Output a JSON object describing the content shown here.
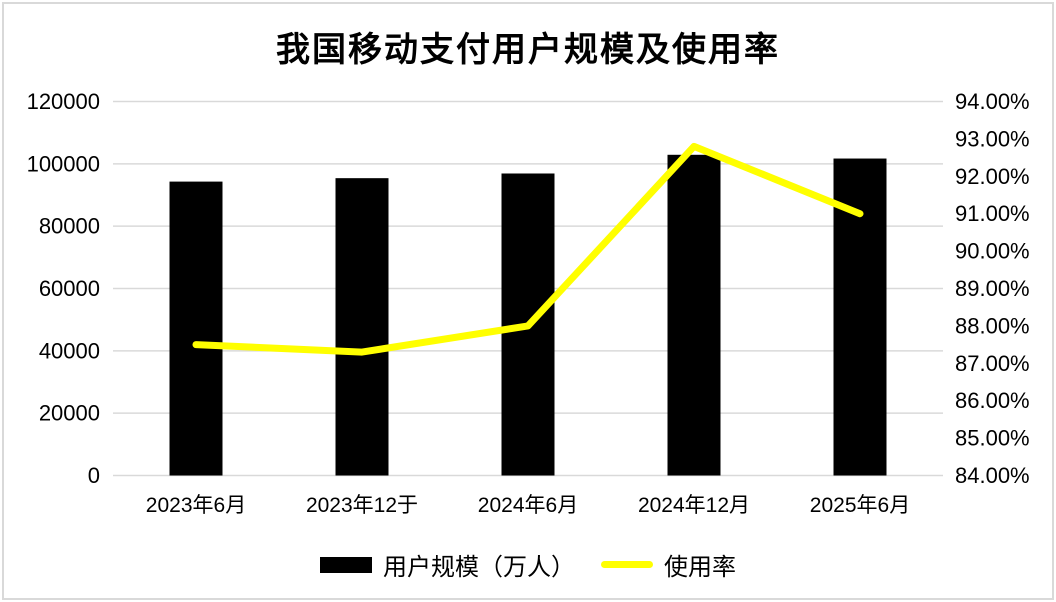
{
  "chart_data": {
    "type": "bar",
    "combo": "bar+line",
    "title": "我国移动支付用户规模及使用率",
    "categories": [
      "2023年6月",
      "2023年12于",
      "2024年6月",
      "2024年12月",
      "2025年6月"
    ],
    "series": [
      {
        "name": "用户规模（万人）",
        "type": "bar",
        "axis": "left",
        "color": "#000000",
        "values": [
          94300,
          95400,
          96900,
          102900,
          101700
        ]
      },
      {
        "name": "使用率",
        "type": "line",
        "axis": "right",
        "color": "#FFFF00",
        "unit": "%",
        "values": [
          87.5,
          87.3,
          88.0,
          92.8,
          91.0
        ]
      }
    ],
    "left_axis": {
      "min": 0,
      "max": 120000,
      "step": 20000,
      "tick_labels": [
        "0",
        "20000",
        "40000",
        "60000",
        "80000",
        "100000",
        "120000"
      ]
    },
    "right_axis": {
      "min": 84,
      "max": 94,
      "step": 1,
      "tick_labels": [
        "84.00%",
        "85.00%",
        "86.00%",
        "87.00%",
        "88.00%",
        "89.00%",
        "90.00%",
        "91.00%",
        "92.00%",
        "93.00%",
        "94.00%"
      ]
    },
    "grid": true,
    "legend_position": "bottom",
    "colors": {
      "grid": "#d9d9d9",
      "text": "#000000",
      "background": "#ffffff",
      "frame_border": "#d9d9d9"
    }
  }
}
